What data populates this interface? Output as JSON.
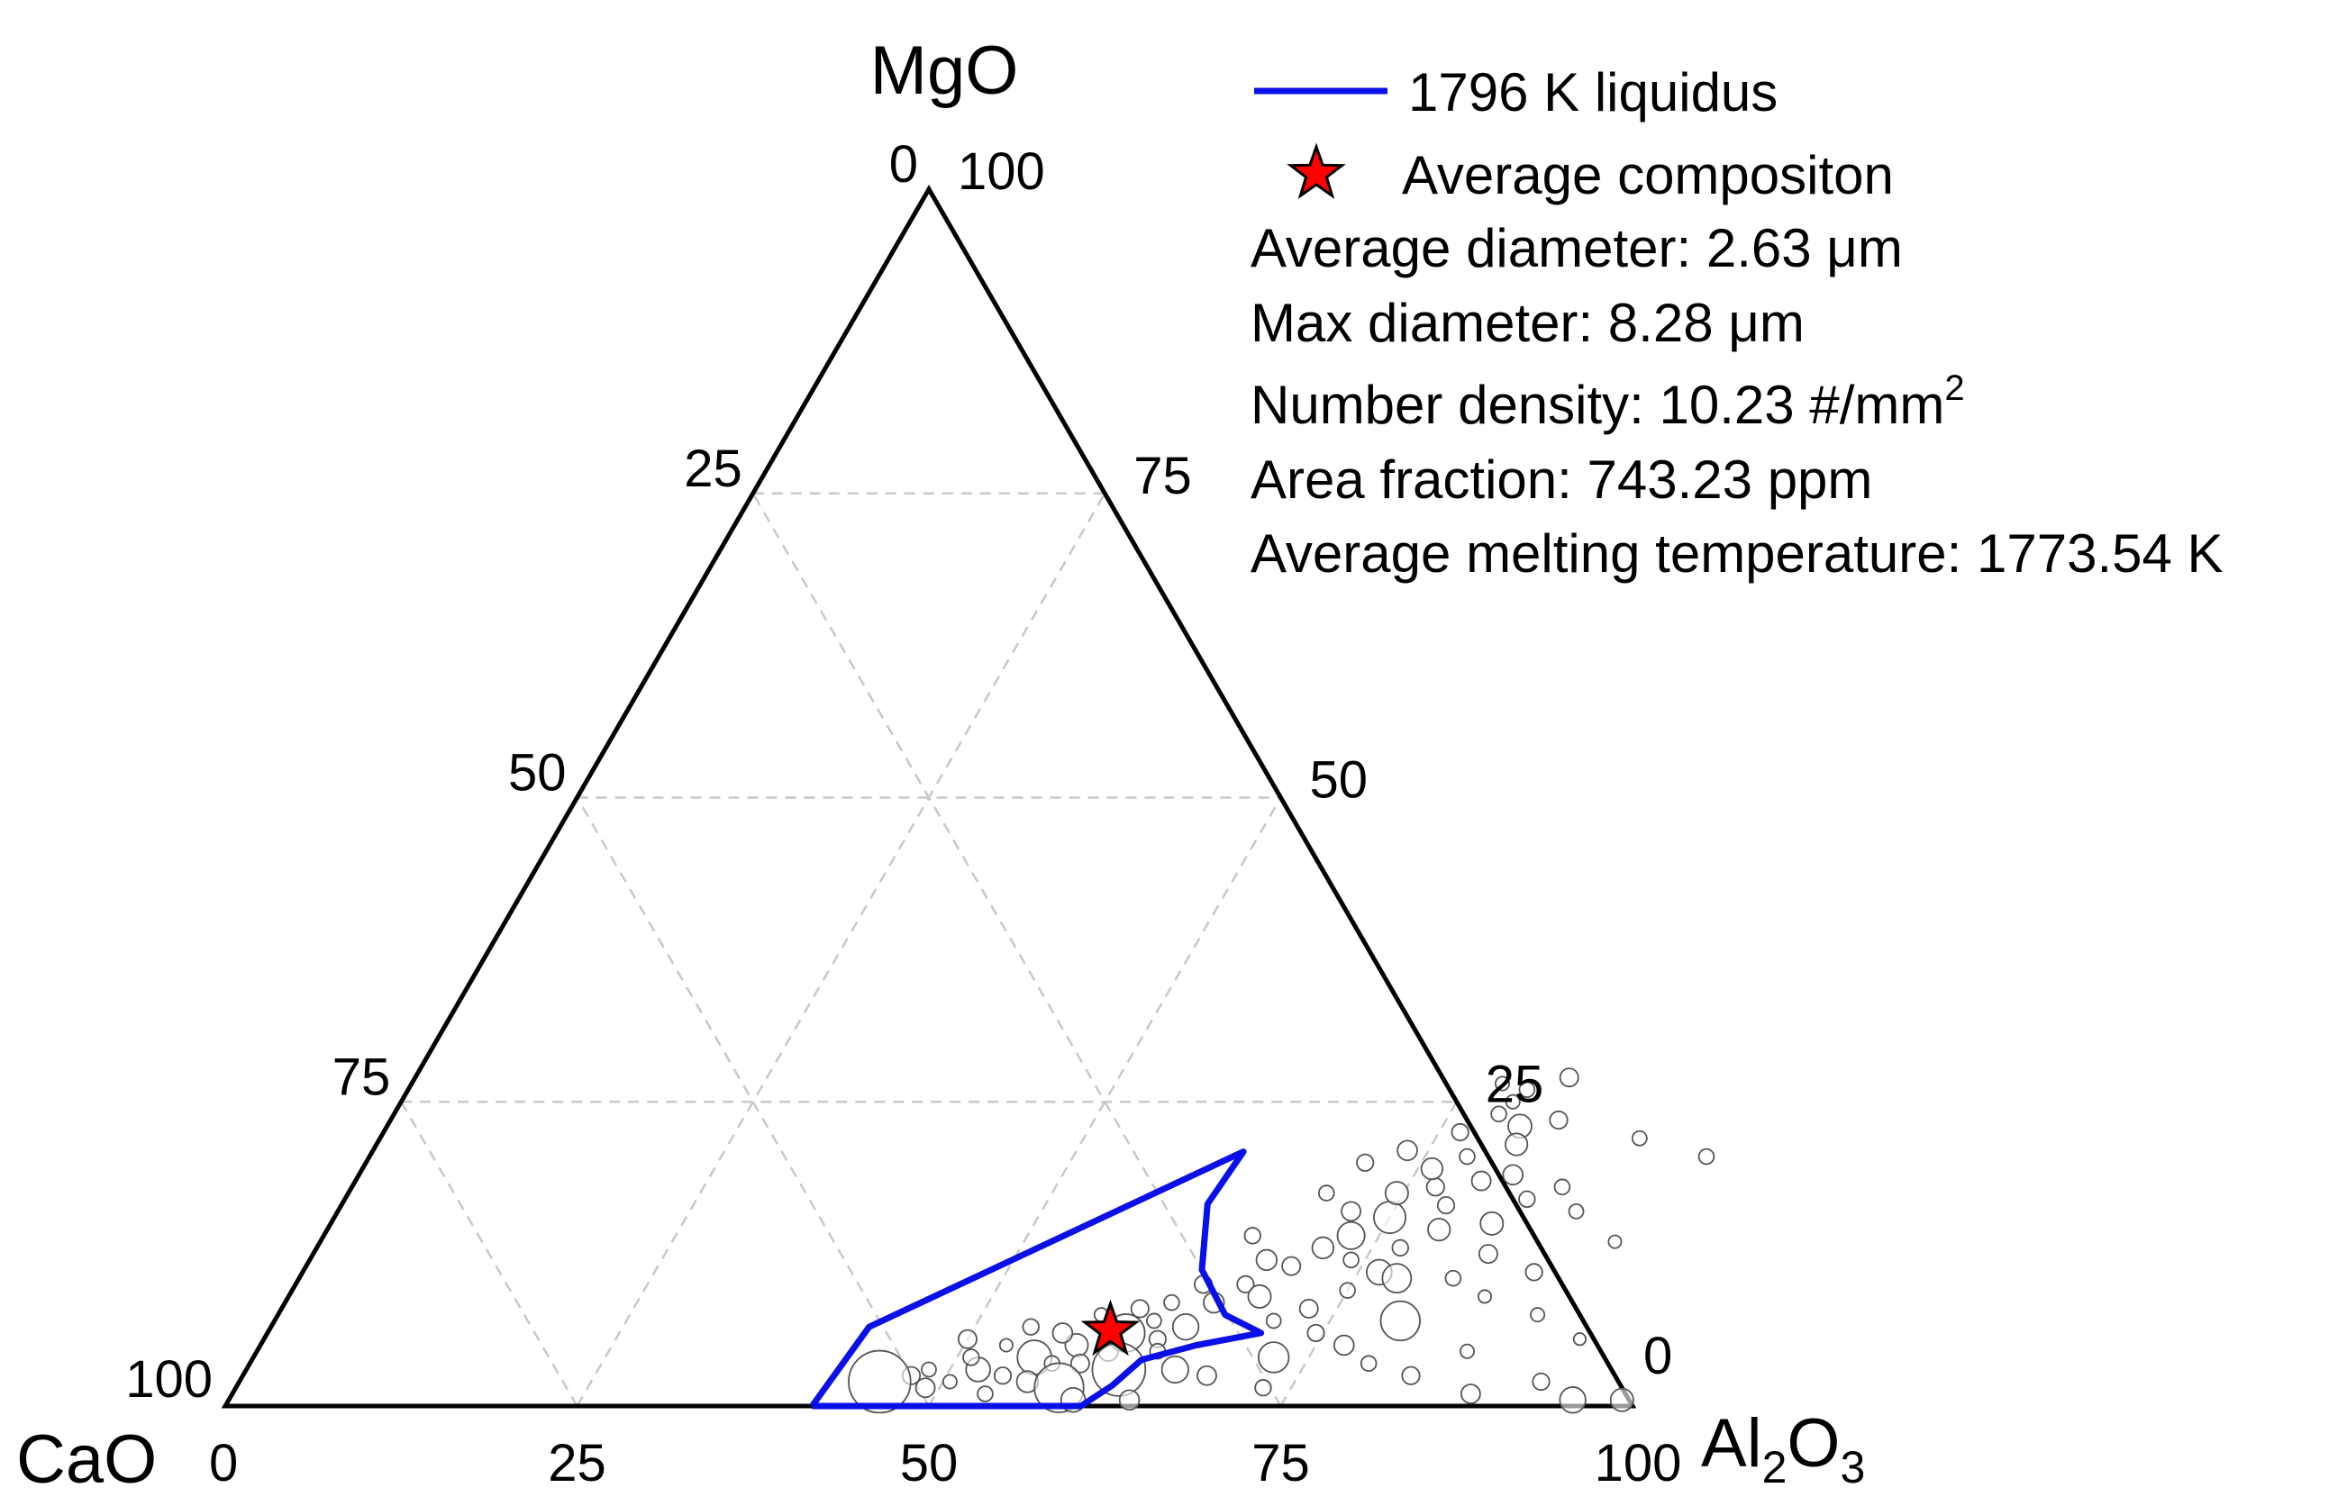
{
  "chart_data": {
    "type": "scatter",
    "subtype": "ternary",
    "axes": {
      "top": {
        "label": "MgO",
        "ticks": [
          "0",
          "25",
          "50",
          "75",
          "100"
        ]
      },
      "left": {
        "label": "CaO",
        "ticks": [
          "100",
          "75",
          "50",
          "25",
          "0"
        ]
      },
      "right": {
        "label_main": "Al",
        "sub1": "2",
        "mid": "O",
        "sub2": "3",
        "ticks": [
          "100",
          "75",
          "50",
          "25",
          "0"
        ]
      }
    },
    "bottom_ticks": [
      "0",
      "25",
      "50",
      "75",
      "100"
    ],
    "left_edge_ticks": [
      "0",
      "25",
      "50",
      "75",
      "100"
    ],
    "right_edge_ticks": [
      "100",
      "75",
      "50",
      "25",
      "0"
    ],
    "grid": true,
    "liquidus": {
      "name": "1796 K liquidus",
      "color": "#0a10e8",
      "points_mgo_al2o3": [
        [
          0,
          41.7
        ],
        [
          6.5,
          42.5
        ],
        [
          20.9,
          61.9
        ],
        [
          16.6,
          61.5
        ],
        [
          11.2,
          63.8
        ],
        [
          7.5,
          67.3
        ],
        [
          6.0,
          70.6
        ],
        [
          5.0,
          66.5
        ],
        [
          3.8,
          63.2
        ],
        [
          1.7,
          62.2
        ],
        [
          0,
          60.8
        ],
        [
          0,
          41.7
        ]
      ]
    },
    "average_composition": {
      "name": "Average compositon",
      "mgo": 6.2,
      "al2o3": 59.8,
      "color": "#ff0000"
    },
    "particles": [
      {
        "m": 1.5,
        "a": 49.0,
        "d": 2.5
      },
      {
        "m": 2.0,
        "a": 50.5,
        "d": 1.8
      },
      {
        "m": 3.0,
        "a": 52.0,
        "d": 3.2
      },
      {
        "m": 2.5,
        "a": 54.0,
        "d": 2.2
      },
      {
        "m": 4.0,
        "a": 55.5,
        "d": 4.5
      },
      {
        "m": 3.5,
        "a": 57.0,
        "d": 2.0
      },
      {
        "m": 5.0,
        "a": 58.0,
        "d": 3.0
      },
      {
        "m": 4.5,
        "a": 60.5,
        "d": 2.6
      },
      {
        "m": 6.0,
        "a": 61.0,
        "d": 5.0
      },
      {
        "m": 5.5,
        "a": 63.5,
        "d": 2.2
      },
      {
        "m": 7.0,
        "a": 62.5,
        "d": 1.9
      },
      {
        "m": 6.5,
        "a": 65.0,
        "d": 3.4
      },
      {
        "m": 2.0,
        "a": 56.0,
        "d": 2.8
      },
      {
        "m": 1.0,
        "a": 53.5,
        "d": 2.0
      },
      {
        "m": 3.5,
        "a": 59.0,
        "d": 2.4
      },
      {
        "m": 4.0,
        "a": 51.0,
        "d": 2.1
      },
      {
        "m": 2.5,
        "a": 47.5,
        "d": 2.3
      },
      {
        "m": 5.0,
        "a": 53.0,
        "d": 1.7
      },
      {
        "m": 6.0,
        "a": 56.5,
        "d": 2.6
      },
      {
        "m": 7.5,
        "a": 58.5,
        "d": 1.8
      },
      {
        "m": 1.5,
        "a": 58.5,
        "d": 6.5
      },
      {
        "m": 3.0,
        "a": 62.0,
        "d": 7.0
      },
      {
        "m": 2.0,
        "a": 45.5,
        "d": 8.2
      },
      {
        "m": 8.0,
        "a": 61.0,
        "d": 2.3
      },
      {
        "m": 4.5,
        "a": 64.0,
        "d": 2.0
      },
      {
        "m": 5.5,
        "a": 50.0,
        "d": 2.4
      },
      {
        "m": 3.0,
        "a": 48.5,
        "d": 1.9
      },
      {
        "m": 6.5,
        "a": 54.0,
        "d": 2.1
      },
      {
        "m": 8.5,
        "a": 66.0,
        "d": 2.7
      },
      {
        "m": 10.0,
        "a": 67.5,
        "d": 2.2
      },
      {
        "m": 9.0,
        "a": 69.0,
        "d": 3.0
      },
      {
        "m": 11.5,
        "a": 70.0,
        "d": 2.4
      },
      {
        "m": 13.0,
        "a": 71.5,
        "d": 2.8
      },
      {
        "m": 14.0,
        "a": 73.0,
        "d": 3.6
      },
      {
        "m": 12.0,
        "a": 74.0,
        "d": 2.0
      },
      {
        "m": 15.5,
        "a": 75.0,
        "d": 4.2
      },
      {
        "m": 16.0,
        "a": 72.0,
        "d": 2.5
      },
      {
        "m": 17.5,
        "a": 74.5,
        "d": 3.0
      },
      {
        "m": 18.0,
        "a": 77.0,
        "d": 2.3
      },
      {
        "m": 19.5,
        "a": 76.0,
        "d": 2.8
      },
      {
        "m": 20.5,
        "a": 78.0,
        "d": 2.0
      },
      {
        "m": 21.0,
        "a": 73.5,
        "d": 2.6
      },
      {
        "m": 22.5,
        "a": 76.5,
        "d": 2.2
      },
      {
        "m": 24.0,
        "a": 78.5,
        "d": 2.0
      },
      {
        "m": 23.0,
        "a": 80.5,
        "d": 3.1
      },
      {
        "m": 25.0,
        "a": 79.0,
        "d": 1.8
      },
      {
        "m": 18.5,
        "a": 80.0,
        "d": 2.5
      },
      {
        "m": 16.5,
        "a": 78.5,
        "d": 2.2
      },
      {
        "m": 14.5,
        "a": 79.0,
        "d": 2.9
      },
      {
        "m": 13.0,
        "a": 77.0,
        "d": 2.1
      },
      {
        "m": 11.0,
        "a": 76.5,
        "d": 3.3
      },
      {
        "m": 9.5,
        "a": 75.0,
        "d": 2.0
      },
      {
        "m": 8.0,
        "a": 73.0,
        "d": 2.4
      },
      {
        "m": 7.0,
        "a": 71.0,
        "d": 1.9
      },
      {
        "m": 6.0,
        "a": 74.5,
        "d": 2.2
      },
      {
        "m": 5.0,
        "a": 77.0,
        "d": 2.6
      },
      {
        "m": 3.5,
        "a": 79.5,
        "d": 2.0
      },
      {
        "m": 2.5,
        "a": 83.0,
        "d": 2.3
      },
      {
        "m": 4.5,
        "a": 86.0,
        "d": 1.8
      },
      {
        "m": 1.0,
        "a": 88.0,
        "d": 2.5
      },
      {
        "m": 10.5,
        "a": 82.0,
        "d": 2.0
      },
      {
        "m": 9.0,
        "a": 85.0,
        "d": 1.7
      },
      {
        "m": 12.5,
        "a": 83.5,
        "d": 2.4
      },
      {
        "m": 15.0,
        "a": 82.5,
        "d": 3.0
      },
      {
        "m": 17.0,
        "a": 84.0,
        "d": 2.1
      },
      {
        "m": 19.0,
        "a": 82.0,
        "d": 2.6
      },
      {
        "m": 21.5,
        "a": 81.0,
        "d": 2.9
      },
      {
        "m": 23.5,
        "a": 83.0,
        "d": 2.3
      },
      {
        "m": 20.0,
        "a": 71.0,
        "d": 2.2
      },
      {
        "m": 17.5,
        "a": 69.5,
        "d": 2.0
      },
      {
        "m": 12.0,
        "a": 68.0,
        "d": 2.7
      },
      {
        "m": 14.0,
        "a": 66.0,
        "d": 2.1
      },
      {
        "m": 10.0,
        "a": 64.5,
        "d": 2.3
      },
      {
        "m": 8.5,
        "a": 63.0,
        "d": 2.0
      },
      {
        "m": 0.5,
        "a": 60.0,
        "d": 3.2
      },
      {
        "m": 0.5,
        "a": 64.0,
        "d": 2.6
      },
      {
        "m": 0.5,
        "a": 95.5,
        "d": 3.4
      },
      {
        "m": 0.5,
        "a": 99.0,
        "d": 3.0
      },
      {
        "m": 2.0,
        "a": 92.5,
        "d": 2.2
      },
      {
        "m": 5.5,
        "a": 93.5,
        "d": 1.6
      },
      {
        "m": 7.5,
        "a": 89.5,
        "d": 1.8
      },
      {
        "m": 13.5,
        "a": 92.0,
        "d": 1.7
      },
      {
        "m": 20.5,
        "a": 95.0,
        "d": 2.0
      },
      {
        "m": 22.0,
        "a": 89.5,
        "d": 1.9
      },
      {
        "m": 11.0,
        "a": 87.5,
        "d": 2.2
      },
      {
        "m": 16.0,
        "a": 88.0,
        "d": 1.9
      },
      {
        "m": 26.5,
        "a": 77.5,
        "d": 1.8
      },
      {
        "m": 27.0,
        "a": 82.0,
        "d": 2.4
      },
      {
        "m": 26.0,
        "a": 79.5,
        "d": 2.0
      },
      {
        "m": 7.0,
        "a": 80.0,
        "d": 5.2
      },
      {
        "m": 4.0,
        "a": 72.5,
        "d": 4.0
      },
      {
        "m": 10.5,
        "a": 78.0,
        "d": 3.8
      },
      {
        "m": 18.0,
        "a": 86.0,
        "d": 2.0
      },
      {
        "m": 1.5,
        "a": 73.0,
        "d": 2.1
      },
      {
        "m": 2.5,
        "a": 68.5,
        "d": 2.5
      },
      {
        "m": 3.0,
        "a": 66.0,
        "d": 3.5
      }
    ]
  },
  "legend": {
    "liquidus_label": "1796 K liquidus",
    "avg_label": "Average compositon",
    "stats": [
      "Average diameter: 2.63 μm",
      "Max diameter: 8.28 μm",
      "Number density: 10.23 #/mm",
      "Area fraction: 743.23 ppm",
      "Average melting temperature: 1773.54 K"
    ],
    "number_density_sup": "2"
  }
}
